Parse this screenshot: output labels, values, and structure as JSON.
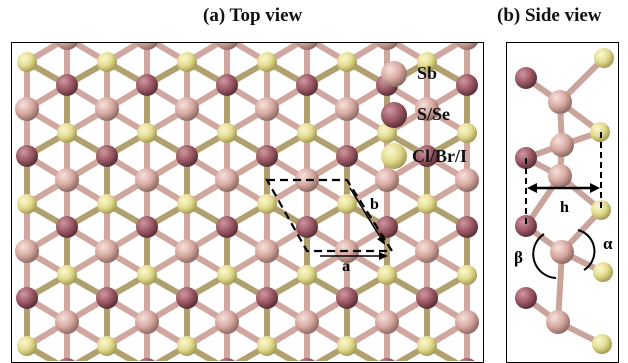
{
  "titles": {
    "top_view": "(a) Top view",
    "side_view": "(b) Side view"
  },
  "legend": [
    {
      "label": "Sb",
      "color": "#d8aaa2"
    },
    {
      "label": "S/Se",
      "color": "#9c5a66"
    },
    {
      "label": "Cl/Br/I",
      "color": "#e3dc8f"
    }
  ],
  "lattice_labels": {
    "a": "a",
    "b": "b",
    "h": "h",
    "beta": "β",
    "alpha": "α"
  },
  "colors": {
    "sb": "#d8aaa2",
    "chalcogen": "#9c5a66",
    "halogen": "#e3dc8f"
  }
}
